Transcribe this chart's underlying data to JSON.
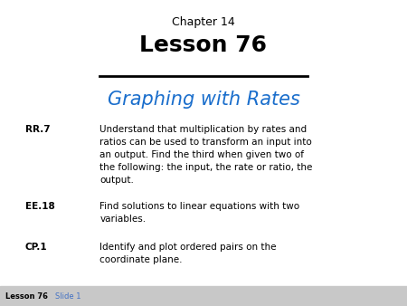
{
  "bg_color": "#ffffff",
  "footer_bg": "#c8c8c8",
  "chapter_text": "Chapter 14",
  "lesson_text": "Lesson 76",
  "subtitle_text": "Graphing with Rates",
  "subtitle_color": "#1a6ecc",
  "line_color": "#000000",
  "items": [
    {
      "label": "RR.7",
      "text": "Understand that multiplication by rates and\nratios can be used to transform an input into\nan output. Find the third when given two of\nthe following: the input, the rate or ratio, the\noutput."
    },
    {
      "label": "EE.18",
      "text": "Find solutions to linear equations with two\nvariables."
    },
    {
      "label": "CP.1",
      "text": "Identify and plot ordered pairs on the\ncoordinate plane."
    }
  ],
  "footer_left": "Lesson 76",
  "footer_right": "Slide 1",
  "footer_right_color": "#4472c4",
  "footer_text_color": "#000000",
  "chapter_fontsize": 9,
  "lesson_fontsize": 18,
  "subtitle_fontsize": 15,
  "body_fontsize": 7.5,
  "footer_fontsize": 6
}
